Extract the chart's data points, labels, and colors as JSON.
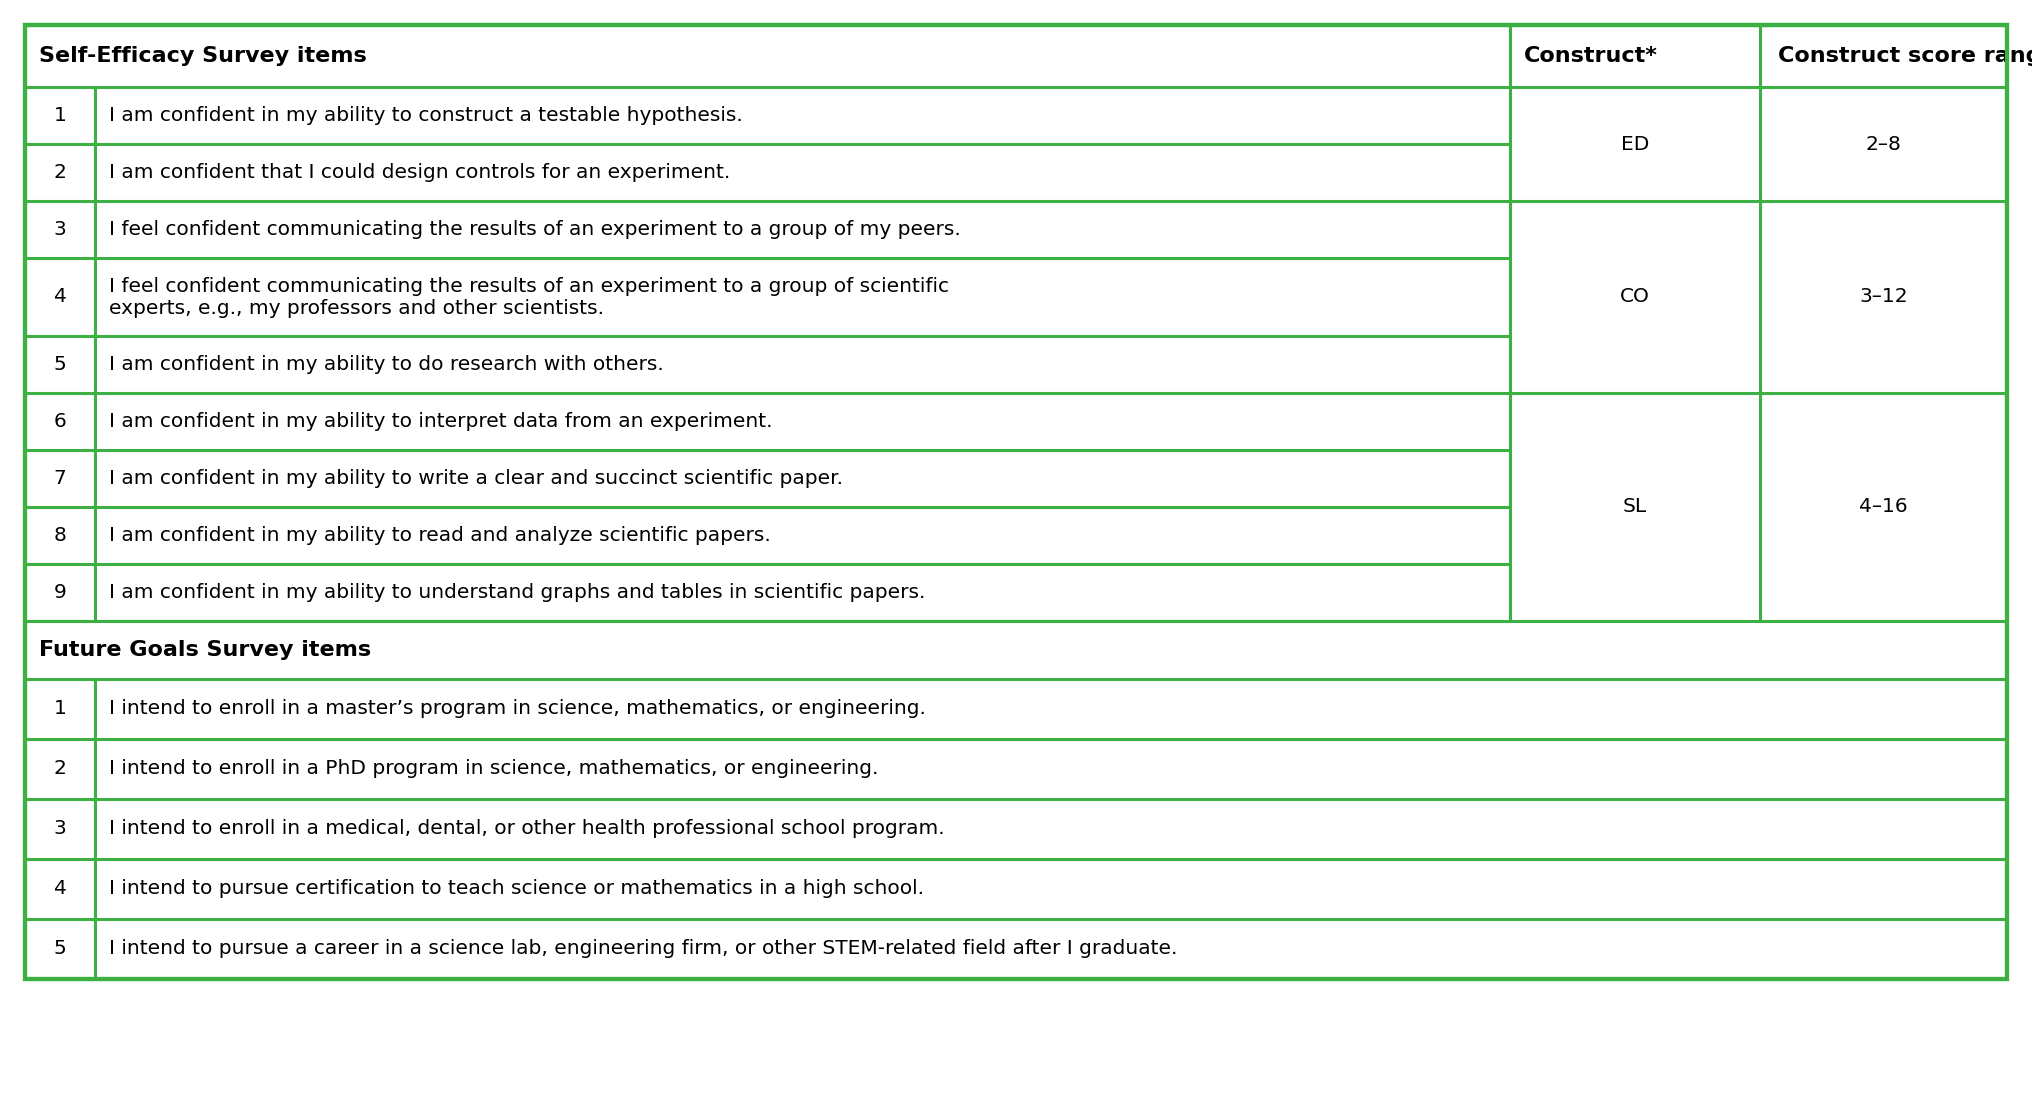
{
  "title_ses": "Self-Efficacy Survey items",
  "title_fgs": "Future Goals Survey items",
  "col_headers": [
    "Construct*",
    "Construct score range"
  ],
  "ses_items": [
    {
      "num": "1",
      "text": "I am confident in my ability to construct a testable hypothesis."
    },
    {
      "num": "2",
      "text": "I am confident that I could design controls for an experiment."
    },
    {
      "num": "3",
      "text": "I feel confident communicating the results of an experiment to a group of my peers."
    },
    {
      "num": "4",
      "text": "I feel confident communicating the results of an experiment to a group of scientific\nexperts, e.g., my professors and other scientists."
    },
    {
      "num": "5",
      "text": "I am confident in my ability to do research with others."
    },
    {
      "num": "6",
      "text": "I am confident in my ability to interpret data from an experiment."
    },
    {
      "num": "7",
      "text": "I am confident in my ability to write a clear and succinct scientific paper."
    },
    {
      "num": "8",
      "text": "I am confident in my ability to read and analyze scientific papers."
    },
    {
      "num": "9",
      "text": "I am confident in my ability to understand graphs and tables in scientific papers."
    }
  ],
  "constructs": [
    {
      "label": "ED",
      "rows": [
        0,
        1
      ],
      "score_range": "2–8"
    },
    {
      "label": "CO",
      "rows": [
        2,
        3,
        4
      ],
      "score_range": "3–12"
    },
    {
      "label": "SL",
      "rows": [
        5,
        6,
        7,
        8
      ],
      "score_range": "4–16"
    }
  ],
  "fgs_items": [
    {
      "num": "1",
      "text": "I intend to enroll in a master’s program in science, mathematics, or engineering."
    },
    {
      "num": "2",
      "text": "I intend to enroll in a PhD program in science, mathematics, or engineering."
    },
    {
      "num": "3",
      "text": "I intend to enroll in a medical, dental, or other health professional school program."
    },
    {
      "num": "4",
      "text": "I intend to pursue certification to teach science or mathematics in a high school."
    },
    {
      "num": "5",
      "text": "I intend to pursue a career in a science lab, engineering firm, or other STEM-related field after I graduate."
    }
  ],
  "line_color": "#3CB043",
  "font_size": 14.5,
  "header_font_size": 16.0,
  "fig_width": 20.32,
  "fig_height": 11.0,
  "dpi": 100
}
